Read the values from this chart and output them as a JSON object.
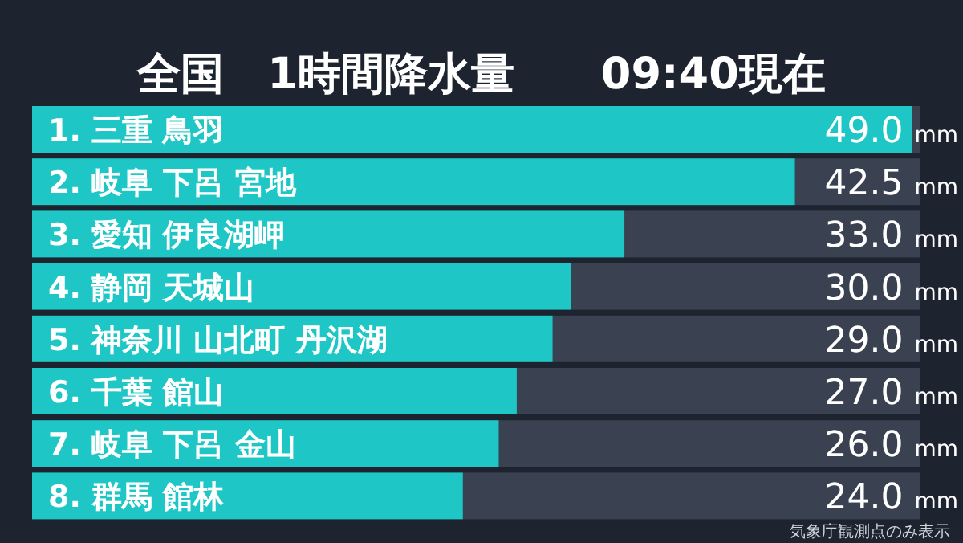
{
  "chart_data": {
    "type": "bar",
    "orientation": "horizontal",
    "title": "全国　1時間降水量　　09:40現在",
    "categories": [
      "1. 三重 鳥羽",
      "2. 岐阜 下呂 宮地",
      "3. 愛知 伊良湖岬",
      "4. 静岡 天城山",
      "5. 神奈川 山北町 丹沢湖",
      "6. 千葉 館山",
      "7. 岐阜 下呂 金山",
      "8. 群馬 館林"
    ],
    "values": [
      49.0,
      42.5,
      33.0,
      30.0,
      29.0,
      27.0,
      26.0,
      24.0
    ],
    "value_labels": [
      "49.0 mm",
      "42.5 mm",
      "33.0 mm",
      "30.0 mm",
      "29.0 mm",
      "27.0 mm",
      "26.0 mm",
      "24.0 mm"
    ],
    "color": "#1fc6c6",
    "xlim": [
      0,
      49
    ],
    "tick_labels": "y",
    "annotations": [
      "気象庁観測点のみ表示"
    ]
  }
}
